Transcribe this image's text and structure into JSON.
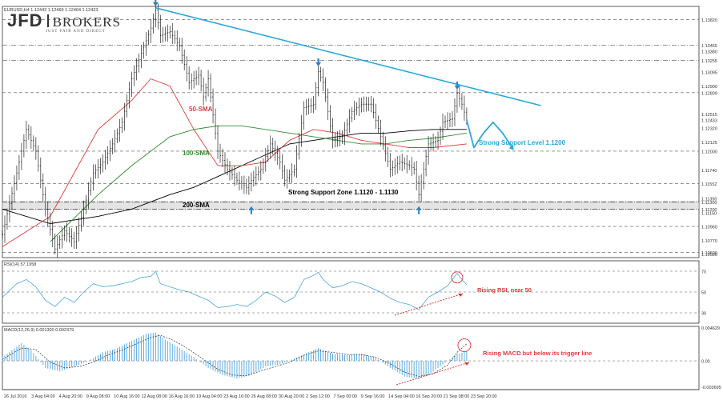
{
  "logo": {
    "brand": "JFD",
    "brokers": "BROKERS",
    "tagline": "JUST FAIR AND DIRECT"
  },
  "symbol_header": "EURUSD,H4  1.12443 1.12469 1.12404 1.12433",
  "chart_data": {
    "type": "candlestick",
    "symbol": "EURUSD,H4",
    "price_axis": {
      "ylim": [
        1.1053,
        1.14
      ],
      "ticks": [
        "1.13820",
        "1.13465",
        "1.13380",
        "1.13255",
        "1.13095",
        "1.12900",
        "1.12809",
        "1.12515",
        "1.12433",
        "1.12320",
        "1.12125",
        "1.12000",
        "1.11740",
        "1.11552",
        "1.11350",
        "1.11300",
        "1.11200",
        "1.11150",
        "1.10960",
        "1.10770",
        "1.10600",
        "1.10580"
      ]
    },
    "time_labels": [
      "26 Jul 2016",
      "3 Aug 04:00",
      "4 Aug 20:00",
      "9 Aug 08:00",
      "10 Aug 16:00",
      "12 Aug 08:00",
      "16 Aug 16:00",
      "19 Aug 04:00",
      "23 Aug 16:00",
      "26 Aug 08:00",
      "30 Aug 20:00",
      "2 Sep 12:00",
      "7 Sep 00:00",
      "9 Sep 16:00",
      "14 Sep 04:00",
      "16 Sep 20:00",
      "21 Sep 08:00",
      "23 Sep 20:00"
    ],
    "price_path": [
      [
        0,
        1.1085
      ],
      [
        6,
        1.117
      ],
      [
        10,
        1.123
      ],
      [
        14,
        1.12
      ],
      [
        18,
        1.112
      ],
      [
        22,
        1.1065
      ],
      [
        26,
        1.109
      ],
      [
        30,
        1.1075
      ],
      [
        34,
        1.112
      ],
      [
        38,
        1.117
      ],
      [
        42,
        1.1185
      ],
      [
        46,
        1.121
      ],
      [
        50,
        1.124
      ],
      [
        54,
        1.13
      ],
      [
        58,
        1.1335
      ],
      [
        62,
        1.137
      ],
      [
        64,
        1.1395
      ],
      [
        66,
        1.136
      ],
      [
        70,
        1.1365
      ],
      [
        74,
        1.1345
      ],
      [
        78,
        1.1295
      ],
      [
        82,
        1.1305
      ],
      [
        84,
        1.1275
      ],
      [
        86,
        1.13
      ],
      [
        88,
        1.125
      ],
      [
        90,
        1.12
      ],
      [
        94,
        1.1175
      ],
      [
        98,
        1.116
      ],
      [
        102,
        1.115
      ],
      [
        104,
        1.116
      ],
      [
        108,
        1.1175
      ],
      [
        112,
        1.121
      ],
      [
        116,
        1.1185
      ],
      [
        118,
        1.116
      ],
      [
        122,
        1.1175
      ],
      [
        126,
        1.126
      ],
      [
        130,
        1.1265
      ],
      [
        132,
        1.131
      ],
      [
        134,
        1.1295
      ],
      [
        138,
        1.1215
      ],
      [
        142,
        1.122
      ],
      [
        146,
        1.1255
      ],
      [
        150,
        1.1265
      ],
      [
        154,
        1.1265
      ],
      [
        158,
        1.122
      ],
      [
        162,
        1.1175
      ],
      [
        166,
        1.1185
      ],
      [
        170,
        1.118
      ],
      [
        172,
        1.1175
      ],
      [
        174,
        1.114
      ],
      [
        178,
        1.121
      ],
      [
        182,
        1.1215
      ],
      [
        184,
        1.124
      ],
      [
        188,
        1.1245
      ],
      [
        190,
        1.128
      ],
      [
        192,
        1.1265
      ],
      [
        194,
        1.1243
      ]
    ],
    "total_bars": 195,
    "sma50": [
      [
        0,
        1.1068
      ],
      [
        20,
        1.111
      ],
      [
        40,
        1.123
      ],
      [
        54,
        1.127
      ],
      [
        62,
        1.13
      ],
      [
        70,
        1.129
      ],
      [
        80,
        1.123
      ],
      [
        90,
        1.118
      ],
      [
        100,
        1.118
      ],
      [
        110,
        1.1185
      ],
      [
        120,
        1.1215
      ],
      [
        130,
        1.123
      ],
      [
        140,
        1.1225
      ],
      [
        150,
        1.1215
      ],
      [
        160,
        1.121
      ],
      [
        170,
        1.1205
      ],
      [
        180,
        1.1205
      ],
      [
        194,
        1.121
      ]
    ],
    "sma100": [
      [
        20,
        1.1075
      ],
      [
        40,
        1.114
      ],
      [
        54,
        1.118
      ],
      [
        62,
        1.12
      ],
      [
        70,
        1.122
      ],
      [
        80,
        1.123
      ],
      [
        90,
        1.1235
      ],
      [
        100,
        1.1235
      ],
      [
        110,
        1.123
      ],
      [
        120,
        1.1225
      ],
      [
        130,
        1.122
      ],
      [
        140,
        1.1215
      ],
      [
        150,
        1.121
      ],
      [
        160,
        1.121
      ],
      [
        170,
        1.1215
      ],
      [
        180,
        1.1218
      ],
      [
        194,
        1.1225
      ]
    ],
    "sma200": [
      [
        0,
        1.112
      ],
      [
        20,
        1.11
      ],
      [
        40,
        1.111
      ],
      [
        54,
        1.112
      ],
      [
        62,
        1.113
      ],
      [
        70,
        1.114
      ],
      [
        80,
        1.115
      ],
      [
        90,
        1.1165
      ],
      [
        100,
        1.118
      ],
      [
        110,
        1.1195
      ],
      [
        120,
        1.121
      ],
      [
        130,
        1.1215
      ],
      [
        140,
        1.122
      ],
      [
        150,
        1.1225
      ],
      [
        160,
        1.1225
      ],
      [
        170,
        1.1228
      ],
      [
        180,
        1.123
      ],
      [
        194,
        1.123
      ]
    ],
    "trendline": {
      "from": [
        64,
        1.1398
      ],
      "to": [
        225,
        1.1263
      ],
      "color": "#29a9d8"
    },
    "forecast_path": [
      [
        194,
        1.1243
      ],
      [
        197,
        1.1205
      ],
      [
        201,
        1.1225
      ],
      [
        205,
        1.124
      ],
      [
        209,
        1.1225
      ],
      [
        213,
        1.1205
      ]
    ],
    "horizontal_levels": [
      {
        "price": 1.1382,
        "style": "dash"
      },
      {
        "price": 1.13465,
        "style": "dashdot"
      },
      {
        "price": 1.13255,
        "style": "dashdot"
      },
      {
        "price": 1.12809,
        "style": "dash"
      },
      {
        "price": 1.12,
        "style": "dash"
      },
      {
        "price": 1.11552,
        "style": "dash"
      },
      {
        "price": 1.113,
        "style": "dash"
      },
      {
        "price": 1.112,
        "style": "dash"
      },
      {
        "price": 1.1096,
        "style": "dash"
      },
      {
        "price": 1.106,
        "style": "dash"
      }
    ],
    "support_zone": {
      "from": 1.112,
      "to": 1.113,
      "label": "Strong Support Zone 1.1120 - 1.1130"
    },
    "support_level_label": "Strong Support Level 1.1200",
    "ma_labels": {
      "sma50": "50-SMA",
      "sma100": "100-SMA",
      "sma200": "200-SMA"
    },
    "arrows_down": [
      [
        64,
        1.1398
      ],
      [
        132,
        1.1315
      ],
      [
        190,
        1.1283
      ]
    ],
    "arrows_up": [
      [
        104,
        1.1135
      ],
      [
        174,
        1.1135
      ]
    ],
    "colors": {
      "price": "#000000",
      "sma50": "#e03a3a",
      "sma100": "#2e8b2e",
      "sma200": "#000000",
      "rsi": "#4aa3df",
      "macd_hist": "#4aa3df",
      "annotation": "#e03a3a",
      "support_text": "#29a9d8"
    },
    "rsi": {
      "header": "RSI(14) 57.1958",
      "ylim": [
        20,
        80
      ],
      "levels": [
        70,
        50,
        30
      ],
      "ticks": [
        "70",
        "50",
        "30"
      ],
      "values": [
        [
          0,
          45
        ],
        [
          6,
          58
        ],
        [
          10,
          62
        ],
        [
          14,
          55
        ],
        [
          18,
          42
        ],
        [
          22,
          36
        ],
        [
          26,
          45
        ],
        [
          30,
          40
        ],
        [
          34,
          50
        ],
        [
          38,
          58
        ],
        [
          42,
          55
        ],
        [
          46,
          56
        ],
        [
          50,
          58
        ],
        [
          54,
          60
        ],
        [
          58,
          64
        ],
        [
          62,
          65
        ],
        [
          64,
          70
        ],
        [
          66,
          58
        ],
        [
          70,
          55
        ],
        [
          74,
          52
        ],
        [
          78,
          50
        ],
        [
          82,
          46
        ],
        [
          86,
          42
        ],
        [
          90,
          35
        ],
        [
          94,
          36
        ],
        [
          98,
          38
        ],
        [
          102,
          36
        ],
        [
          106,
          42
        ],
        [
          110,
          50
        ],
        [
          114,
          46
        ],
        [
          118,
          40
        ],
        [
          122,
          45
        ],
        [
          126,
          62
        ],
        [
          130,
          66
        ],
        [
          132,
          69
        ],
        [
          134,
          62
        ],
        [
          138,
          54
        ],
        [
          142,
          56
        ],
        [
          146,
          60
        ],
        [
          150,
          58
        ],
        [
          154,
          54
        ],
        [
          158,
          50
        ],
        [
          162,
          44
        ],
        [
          166,
          40
        ],
        [
          170,
          38
        ],
        [
          174,
          33
        ],
        [
          178,
          45
        ],
        [
          182,
          50
        ],
        [
          186,
          56
        ],
        [
          190,
          68
        ],
        [
          192,
          62
        ],
        [
          194,
          57
        ]
      ],
      "annotation": "Rising RSI, near 50"
    },
    "macd": {
      "header": "MACD(12,26,9) 0.001300 0.002379",
      "ylim": [
        -0.00405,
        0.00485
      ],
      "ticks": [
        "0.004629",
        "0.00",
        "-0.003695"
      ],
      "histogram": [
        [
          0,
          0.0005
        ],
        [
          8,
          0.0025
        ],
        [
          12,
          0.0015
        ],
        [
          18,
          -0.001
        ],
        [
          24,
          -0.0015
        ],
        [
          30,
          -0.0008
        ],
        [
          36,
          0.0
        ],
        [
          42,
          0.0012
        ],
        [
          48,
          0.0018
        ],
        [
          54,
          0.0028
        ],
        [
          60,
          0.0038
        ],
        [
          64,
          0.004
        ],
        [
          68,
          0.003
        ],
        [
          74,
          0.0018
        ],
        [
          80,
          0.0005
        ],
        [
          86,
          -0.001
        ],
        [
          92,
          -0.002
        ],
        [
          98,
          -0.0025
        ],
        [
          104,
          -0.002
        ],
        [
          110,
          -0.0008
        ],
        [
          116,
          -0.0005
        ],
        [
          122,
          0.0003
        ],
        [
          128,
          0.0012
        ],
        [
          132,
          0.0018
        ],
        [
          138,
          0.001
        ],
        [
          144,
          0.0008
        ],
        [
          150,
          0.001
        ],
        [
          156,
          0.0004
        ],
        [
          162,
          -0.001
        ],
        [
          168,
          -0.0022
        ],
        [
          174,
          -0.0026
        ],
        [
          180,
          -0.0015
        ],
        [
          186,
          0.0
        ],
        [
          190,
          0.001
        ],
        [
          194,
          0.0013
        ]
      ],
      "signal": [
        [
          0,
          0.0002
        ],
        [
          8,
          0.0018
        ],
        [
          14,
          0.0016
        ],
        [
          20,
          -0.0002
        ],
        [
          26,
          -0.001
        ],
        [
          32,
          -0.0008
        ],
        [
          38,
          -0.0002
        ],
        [
          44,
          0.0008
        ],
        [
          50,
          0.0015
        ],
        [
          56,
          0.0024
        ],
        [
          62,
          0.0033
        ],
        [
          66,
          0.0036
        ],
        [
          72,
          0.0028
        ],
        [
          78,
          0.0016
        ],
        [
          84,
          0.0002
        ],
        [
          90,
          -0.0012
        ],
        [
          96,
          -0.002
        ],
        [
          102,
          -0.0021
        ],
        [
          108,
          -0.0014
        ],
        [
          114,
          -0.0008
        ],
        [
          120,
          -0.0002
        ],
        [
          126,
          0.0008
        ],
        [
          132,
          0.0014
        ],
        [
          138,
          0.0012
        ],
        [
          144,
          0.0009
        ],
        [
          150,
          0.0009
        ],
        [
          156,
          0.0005
        ],
        [
          162,
          -0.0004
        ],
        [
          168,
          -0.0016
        ],
        [
          174,
          -0.0022
        ],
        [
          180,
          -0.0018
        ],
        [
          186,
          -0.0006
        ],
        [
          190,
          0.0012
        ],
        [
          194,
          0.0024
        ]
      ],
      "annotation": "Rising MACD but below its trigger line"
    }
  }
}
